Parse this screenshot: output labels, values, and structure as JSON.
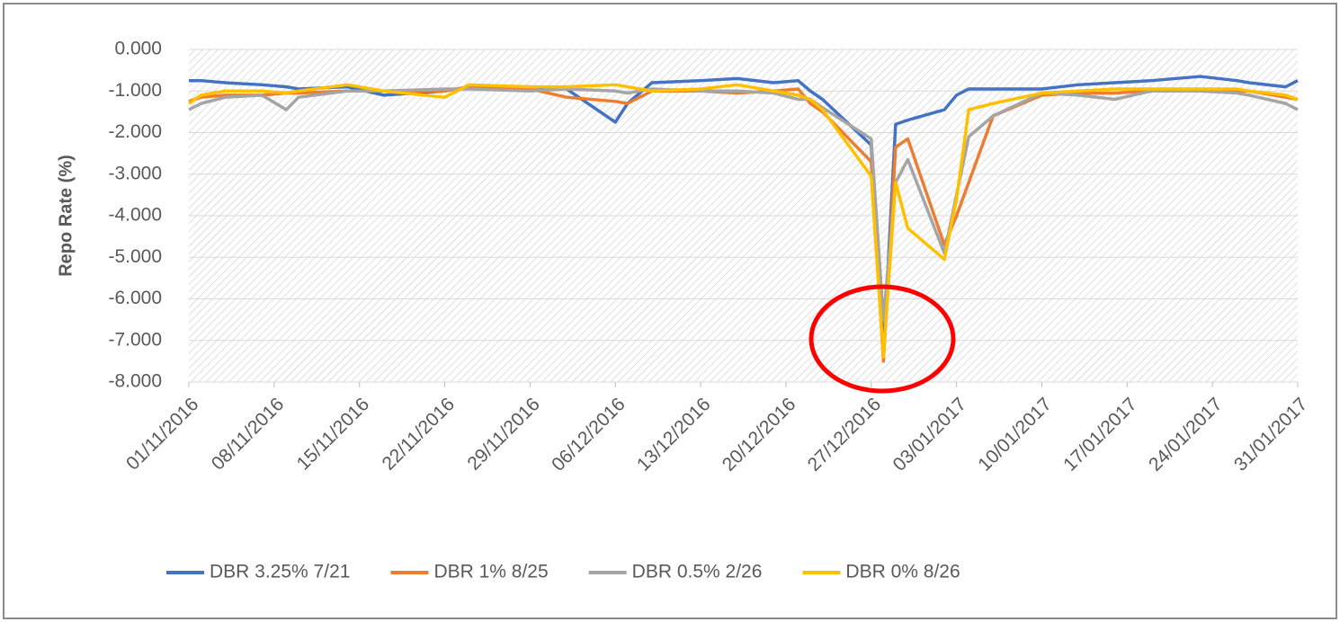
{
  "chart_data": {
    "type": "line",
    "y_label": "Repo Rate (%)",
    "x": [
      "01/11/2016",
      "02/11/2016",
      "04/11/2016",
      "07/11/2016",
      "09/11/2016",
      "10/11/2016",
      "14/11/2016",
      "17/11/2016",
      "22/11/2016",
      "24/11/2016",
      "29/11/2016",
      "02/12/2016",
      "06/12/2016",
      "07/12/2016",
      "09/12/2016",
      "13/12/2016",
      "16/12/2016",
      "19/12/2016",
      "21/12/2016",
      "22/12/2016",
      "23/12/2016",
      "27/12/2016",
      "28/12/2016",
      "29/12/2016",
      "30/12/2016",
      "02/01/2017",
      "03/01/2017",
      "04/01/2017",
      "06/01/2017",
      "10/01/2017",
      "13/01/2017",
      "16/01/2017",
      "19/01/2017",
      "23/01/2017",
      "26/01/2017",
      "27/01/2017",
      "30/01/2017",
      "31/01/2017"
    ],
    "series": [
      {
        "name": "DBR 3.25% 7/21",
        "color": "#4472c4",
        "values": [
          -0.75,
          -0.75,
          -0.8,
          -0.85,
          -0.9,
          -0.95,
          -0.9,
          -1.1,
          -1.0,
          -0.9,
          -0.9,
          -0.95,
          -1.75,
          -1.3,
          -0.8,
          -0.75,
          -0.7,
          -0.8,
          -0.75,
          -1.0,
          -1.2,
          -2.3,
          -7.3,
          -1.8,
          -1.7,
          -1.45,
          -1.1,
          -0.95,
          -0.95,
          -0.95,
          -0.85,
          -0.8,
          -0.75,
          -0.65,
          -0.75,
          -0.8,
          -0.9,
          -0.75
        ]
      },
      {
        "name": "DBR 1% 8/25",
        "color": "#ed7d31",
        "values": [
          -1.25,
          -1.15,
          -1.1,
          -1.1,
          -1.05,
          -1.05,
          -1.0,
          -1.0,
          -1.0,
          -0.9,
          -0.95,
          -1.15,
          -1.25,
          -1.3,
          -1.0,
          -1.0,
          -1.05,
          -1.0,
          -0.95,
          -1.3,
          -1.5,
          -2.7,
          -7.5,
          -2.35,
          -2.15,
          -4.7,
          -4.0,
          -3.2,
          -1.6,
          -1.1,
          -1.05,
          -1.05,
          -1.0,
          -1.0,
          -1.0,
          -1.0,
          -1.15,
          -1.2
        ]
      },
      {
        "name": "DBR 0.5% 2/26",
        "color": "#a5a5a5",
        "values": [
          -1.45,
          -1.3,
          -1.15,
          -1.1,
          -1.45,
          -1.15,
          -1.0,
          -1.0,
          -0.95,
          -0.95,
          -1.0,
          -0.95,
          -1.0,
          -1.05,
          -0.95,
          -1.0,
          -1.0,
          -1.05,
          -1.2,
          -1.2,
          -1.4,
          -2.15,
          -6.5,
          -3.2,
          -2.65,
          -4.9,
          -3.5,
          -2.1,
          -1.6,
          -1.05,
          -1.1,
          -1.2,
          -1.0,
          -1.0,
          -1.05,
          -1.1,
          -1.3,
          -1.45
        ]
      },
      {
        "name": "DBR 0% 8/26",
        "color": "#ffc000",
        "values": [
          -1.3,
          -1.1,
          -1.0,
          -1.0,
          -1.05,
          -1.0,
          -0.85,
          -1.0,
          -1.15,
          -0.85,
          -0.9,
          -0.9,
          -0.85,
          -0.9,
          -1.0,
          -0.95,
          -0.85,
          -1.0,
          -1.1,
          -1.2,
          -1.45,
          -3.05,
          -7.4,
          -3.2,
          -4.3,
          -5.05,
          -3.6,
          -1.45,
          -1.3,
          -1.05,
          -1.0,
          -0.95,
          -0.95,
          -0.95,
          -0.95,
          -1.0,
          -1.1,
          -1.2
        ]
      }
    ],
    "xlim": [
      "01/11/2016",
      "31/01/2017"
    ],
    "xticks": [
      "01/11/2016",
      "08/11/2016",
      "15/11/2016",
      "22/11/2016",
      "29/11/2016",
      "06/12/2016",
      "13/12/2016",
      "20/12/2016",
      "27/12/2016",
      "03/01/2017",
      "10/01/2017",
      "17/01/2017",
      "24/01/2017",
      "31/01/2017"
    ],
    "ylim": [
      -8,
      0
    ],
    "yticks": [
      {
        "value": 0,
        "label": "0.000"
      },
      {
        "value": -1,
        "label": "-1.000"
      },
      {
        "value": -2,
        "label": "-2.000"
      },
      {
        "value": -3,
        "label": "-3.000"
      },
      {
        "value": -4,
        "label": "-4.000"
      },
      {
        "value": -5,
        "label": "-5.000"
      },
      {
        "value": -6,
        "label": "-6.000"
      },
      {
        "value": -7,
        "label": "-7.000"
      },
      {
        "value": -8,
        "label": "-8.000"
      }
    ],
    "grid": true,
    "legend": "bottom"
  }
}
